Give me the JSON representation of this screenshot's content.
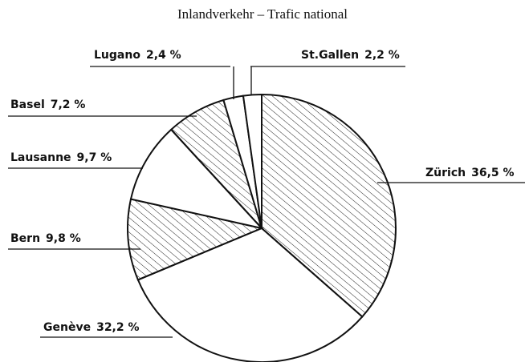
{
  "chart_data": {
    "type": "pie",
    "title": "Inlandverkehr – Trafic national",
    "categories": [
      "Zürich",
      "Genève",
      "Bern",
      "Lausanne",
      "Basel",
      "Lugano",
      "St.Gallen"
    ],
    "values": [
      36.5,
      32.2,
      9.8,
      9.7,
      7.2,
      2.4,
      2.2
    ],
    "value_labels": [
      "36,5 %",
      "32,2 %",
      "9,8 %",
      "9,7 %",
      "7,2 %",
      "2,4 %",
      "2,2 %"
    ],
    "fills": [
      "hatched",
      "plain",
      "hatched",
      "plain",
      "hatched",
      "plain",
      "plain"
    ],
    "start_angle": 0,
    "direction": "clockwise"
  }
}
